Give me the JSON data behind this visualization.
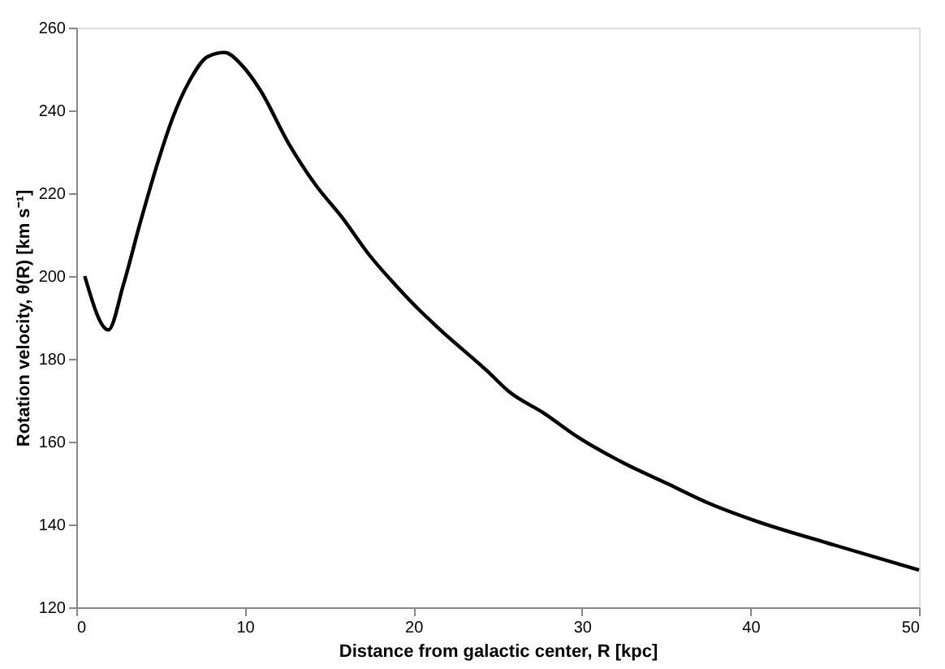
{
  "chart_data": {
    "type": "line",
    "xlabel": "Distance from galactic center, R [kpc]",
    "ylabel": "Rotation velocity, θ(R) [km s⁻¹]",
    "series": [
      {
        "color": "#000000",
        "x": [
          0.5,
          1.9,
          2.8,
          3.8,
          4.8,
          5.7,
          6.7,
          7.8,
          8.8,
          9.8,
          10.9,
          12.6,
          14.2,
          15.8,
          17.4,
          18.9,
          20.3,
          21.6,
          24.4,
          25.7,
          27.7,
          29.8,
          32.4,
          35,
          37.6,
          40.2,
          45,
          50
        ],
        "values": [
          200,
          187,
          198,
          213,
          227,
          238,
          247,
          253,
          254,
          251,
          245,
          232,
          222,
          214,
          205,
          198,
          192,
          187,
          177,
          172,
          167,
          161,
          155,
          150,
          145,
          141,
          135,
          129
        ]
      }
    ],
    "xlim": [
      0,
      50
    ],
    "xticks": [
      0,
      10,
      20,
      30,
      40,
      50
    ],
    "ylim": [
      120,
      260
    ],
    "yticks": [
      120,
      140,
      160,
      180,
      200,
      220,
      240,
      260
    ],
    "grid": false,
    "marker": "none",
    "line_style": "solid"
  }
}
